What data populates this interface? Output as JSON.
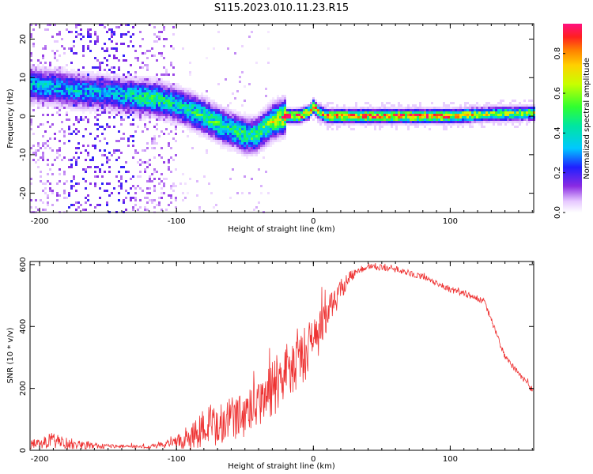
{
  "title": "S115.2023.010.11.23.R15",
  "chart_data": [
    {
      "type": "heatmap",
      "xlabel": "Height of straight line (km)",
      "ylabel": "Frequency (Hz)",
      "xlim": [
        -207,
        161
      ],
      "ylim": [
        -25,
        24
      ],
      "xticks": [
        -200,
        -100,
        0,
        100
      ],
      "yticks": [
        -20,
        -10,
        0,
        10,
        20
      ],
      "colorbar": {
        "label": "Normalized spectral amplitude",
        "range": [
          0,
          0.95
        ],
        "ticks": [
          "0.0",
          "0.2",
          "0.4",
          "0.6",
          "0.8"
        ],
        "colormap": "rainbow-white-to-magenta"
      },
      "ridge": {
        "x": [
          -205,
          -190,
          -170,
          -150,
          -130,
          -115,
          -100,
          -90,
          -80,
          -70,
          -60,
          -50,
          -42,
          -35,
          -28,
          -20,
          -10,
          -3,
          0,
          4,
          10,
          30,
          60,
          100,
          130,
          161
        ],
        "freq_hz": [
          8,
          7.5,
          6.5,
          6,
          5,
          4.5,
          3,
          1.5,
          0,
          -2,
          -3.5,
          -5,
          -5,
          -3,
          -1,
          0,
          0,
          1,
          2.5,
          1,
          0,
          0,
          0,
          0,
          0.5,
          0.8
        ],
        "peak_amplitude": [
          0.4,
          0.4,
          0.4,
          0.35,
          0.5,
          0.55,
          0.45,
          0.5,
          0.55,
          0.55,
          0.5,
          0.55,
          0.55,
          0.6,
          0.7,
          0.9,
          0.95,
          0.8,
          0.9,
          0.8,
          0.85,
          0.85,
          0.9,
          0.9,
          0.7,
          0.7
        ]
      }
    },
    {
      "type": "line",
      "xlabel": "Height of straight line (km)",
      "ylabel": "SNR (10 * v/v)",
      "xlim": [
        -207,
        161
      ],
      "ylim": [
        0,
        610
      ],
      "xticks": [
        -200,
        -100,
        0,
        100
      ],
      "yticks": [
        0,
        200,
        400,
        600
      ],
      "color": "#ee3333",
      "series": [
        {
          "x": [
            -207,
            -200,
            -190,
            -180,
            -160,
            -140,
            -120,
            -110,
            -100,
            -90,
            -80,
            -70,
            -60,
            -50,
            -40,
            -30,
            -20,
            -10,
            0,
            10,
            20,
            30,
            40,
            50,
            60,
            80,
            100,
            120,
            125,
            130,
            140,
            150,
            160
          ],
          "y": [
            18,
            25,
            30,
            22,
            15,
            12,
            12,
            18,
            28,
            50,
            70,
            85,
            100,
            115,
            140,
            200,
            260,
            300,
            340,
            430,
            520,
            575,
            595,
            590,
            585,
            560,
            520,
            490,
            480,
            420,
            300,
            250,
            195
          ],
          "noise_amplitude": [
            15,
            20,
            25,
            20,
            10,
            6,
            6,
            10,
            20,
            50,
            70,
            70,
            70,
            75,
            80,
            100,
            100,
            100,
            80,
            60,
            35,
            15,
            10,
            10,
            10,
            10,
            10,
            10,
            10,
            10,
            10,
            10,
            10
          ]
        }
      ]
    }
  ]
}
